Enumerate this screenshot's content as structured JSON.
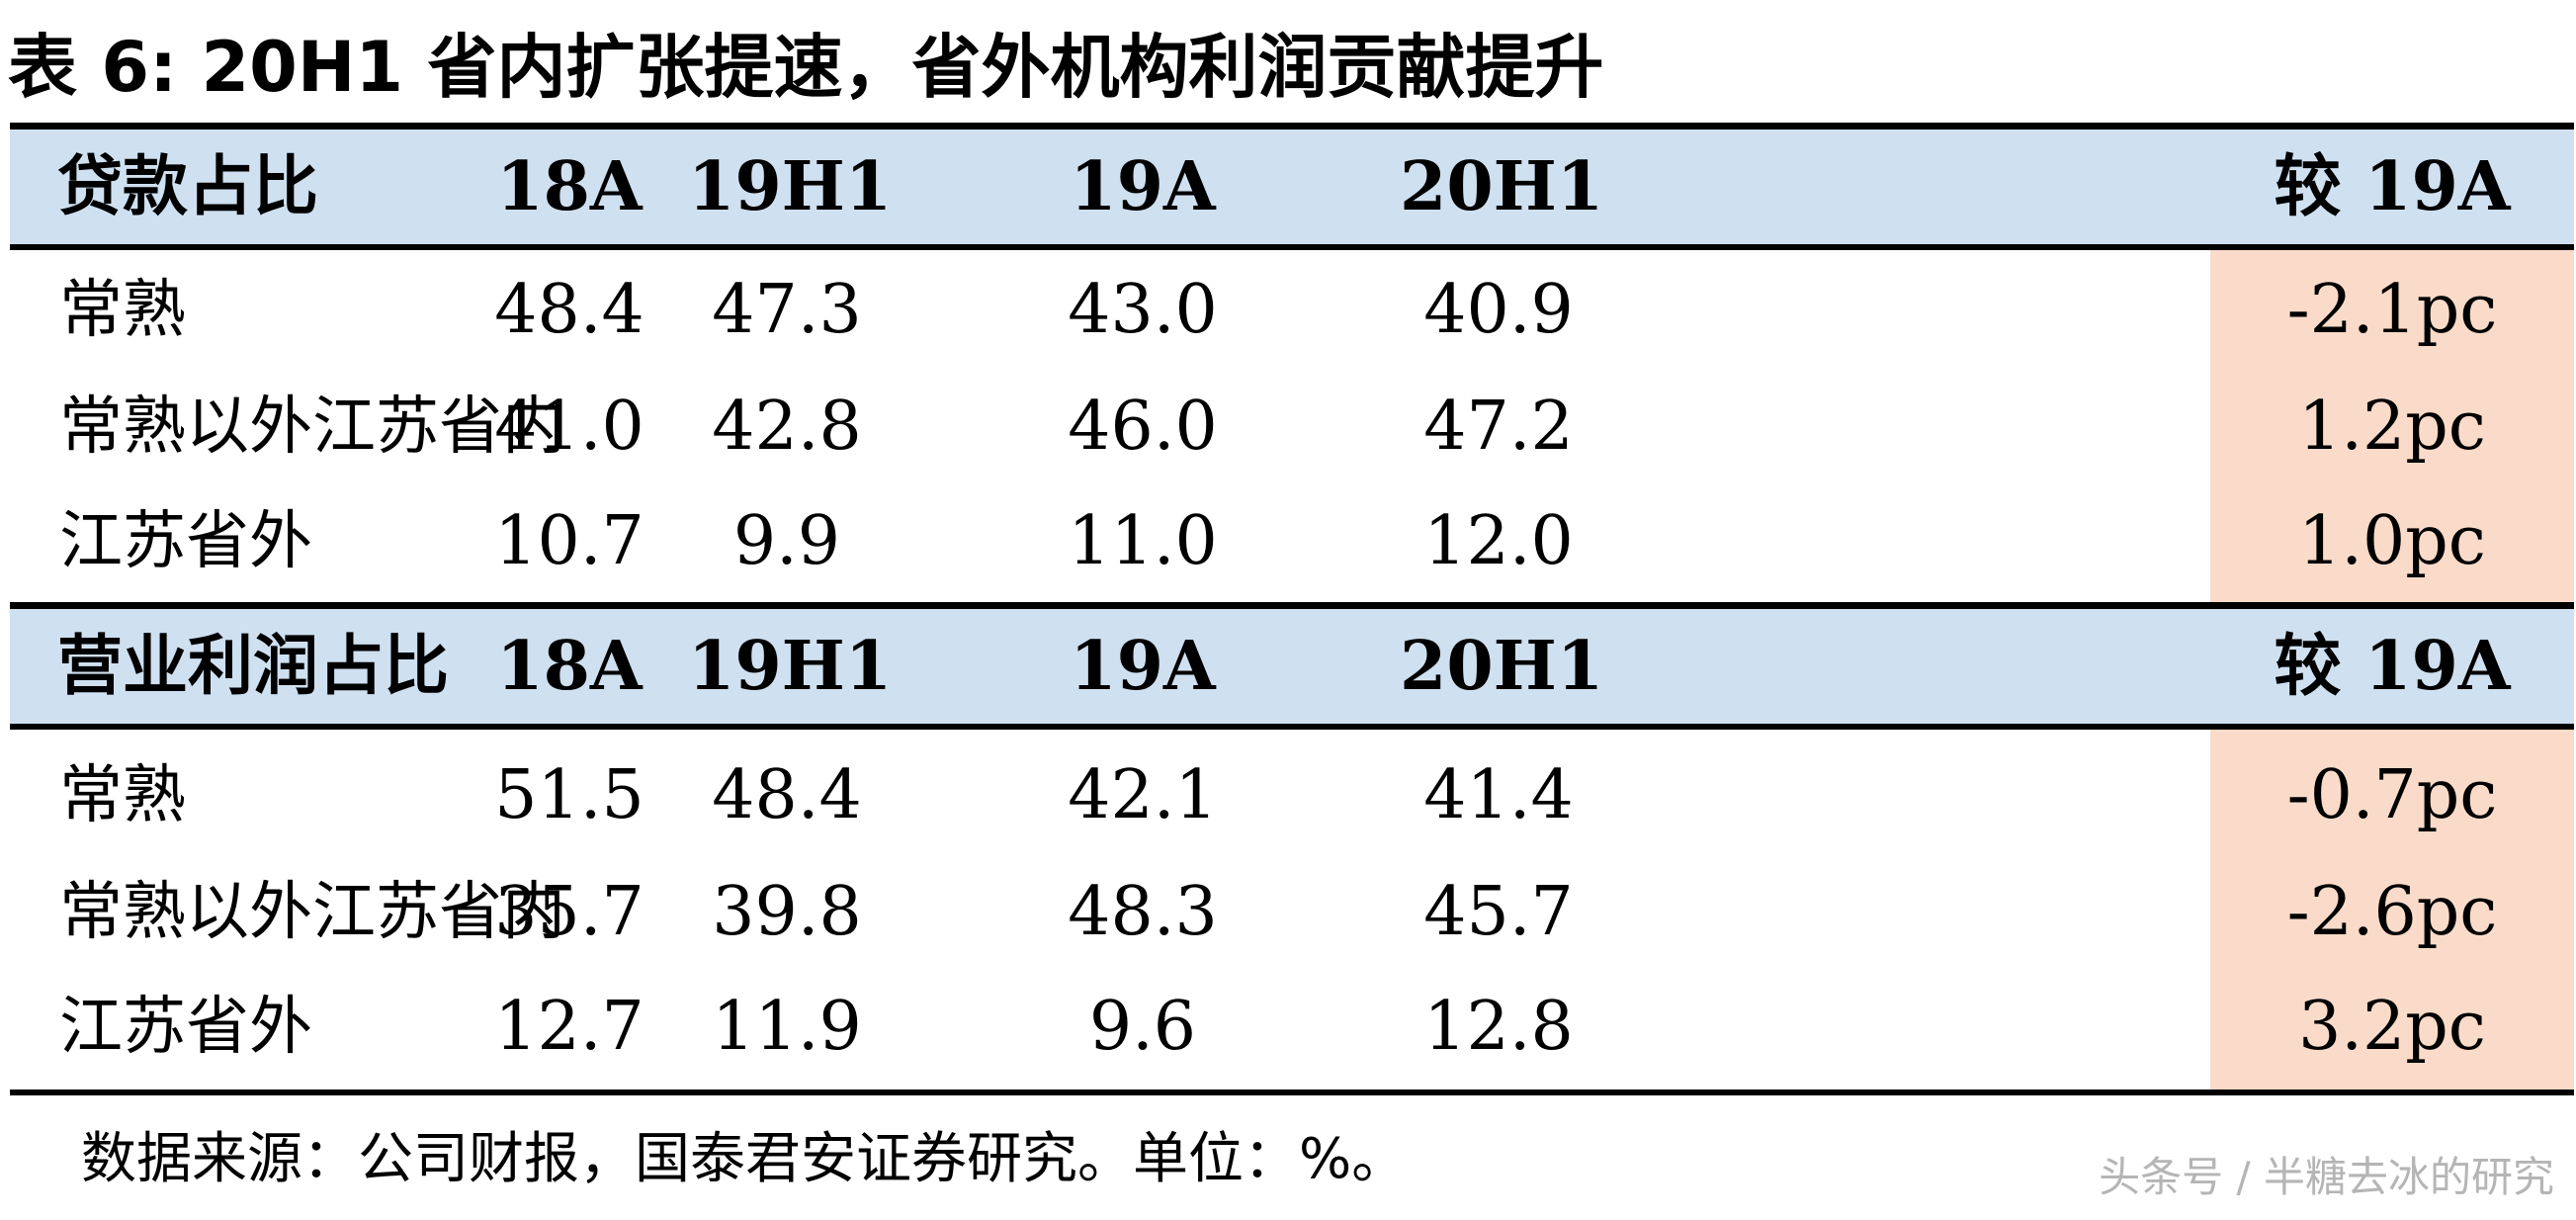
{
  "title": "表 6:  20H1 省内扩张提速，省外机构利润贡献提升",
  "sections": [
    {
      "header": {
        "label": "贷款占比",
        "columns": [
          "18A",
          "19H1",
          "19A",
          "20H1",
          "较 19A"
        ]
      },
      "rows": [
        {
          "label": "常熟",
          "values": [
            "48.4",
            "47.3",
            "43.0",
            "40.9",
            "-2.1pc"
          ]
        },
        {
          "label": "常熟以外江苏省内",
          "values": [
            "41.0",
            "42.8",
            "46.0",
            "47.2",
            "1.2pc"
          ]
        },
        {
          "label": "江苏省外",
          "values": [
            "10.7",
            "9.9",
            "11.0",
            "12.0",
            "1.0pc"
          ]
        }
      ]
    },
    {
      "header": {
        "label": "营业利润占比",
        "columns": [
          "18A",
          "19H1",
          "19A",
          "20H1",
          "较 19A"
        ]
      },
      "rows": [
        {
          "label": "常熟",
          "values": [
            "51.5",
            "48.4",
            "42.1",
            "41.4",
            "-0.7pc"
          ]
        },
        {
          "label": "常熟以外江苏省内",
          "values": [
            "35.7",
            "39.8",
            "48.3",
            "45.7",
            "-2.6pc"
          ]
        },
        {
          "label": "江苏省外",
          "values": [
            "12.7",
            "11.9",
            "9.6",
            "12.8",
            "3.2pc"
          ]
        }
      ]
    }
  ],
  "source": "数据来源：公司财报，国泰君安证券研究。单位：%。",
  "watermark": "头条号 / 半糖去冰的研究",
  "colors": {
    "header_bg": "#cfe0f0",
    "highlight_bg": "#fadbc9",
    "rule": "#000000"
  }
}
